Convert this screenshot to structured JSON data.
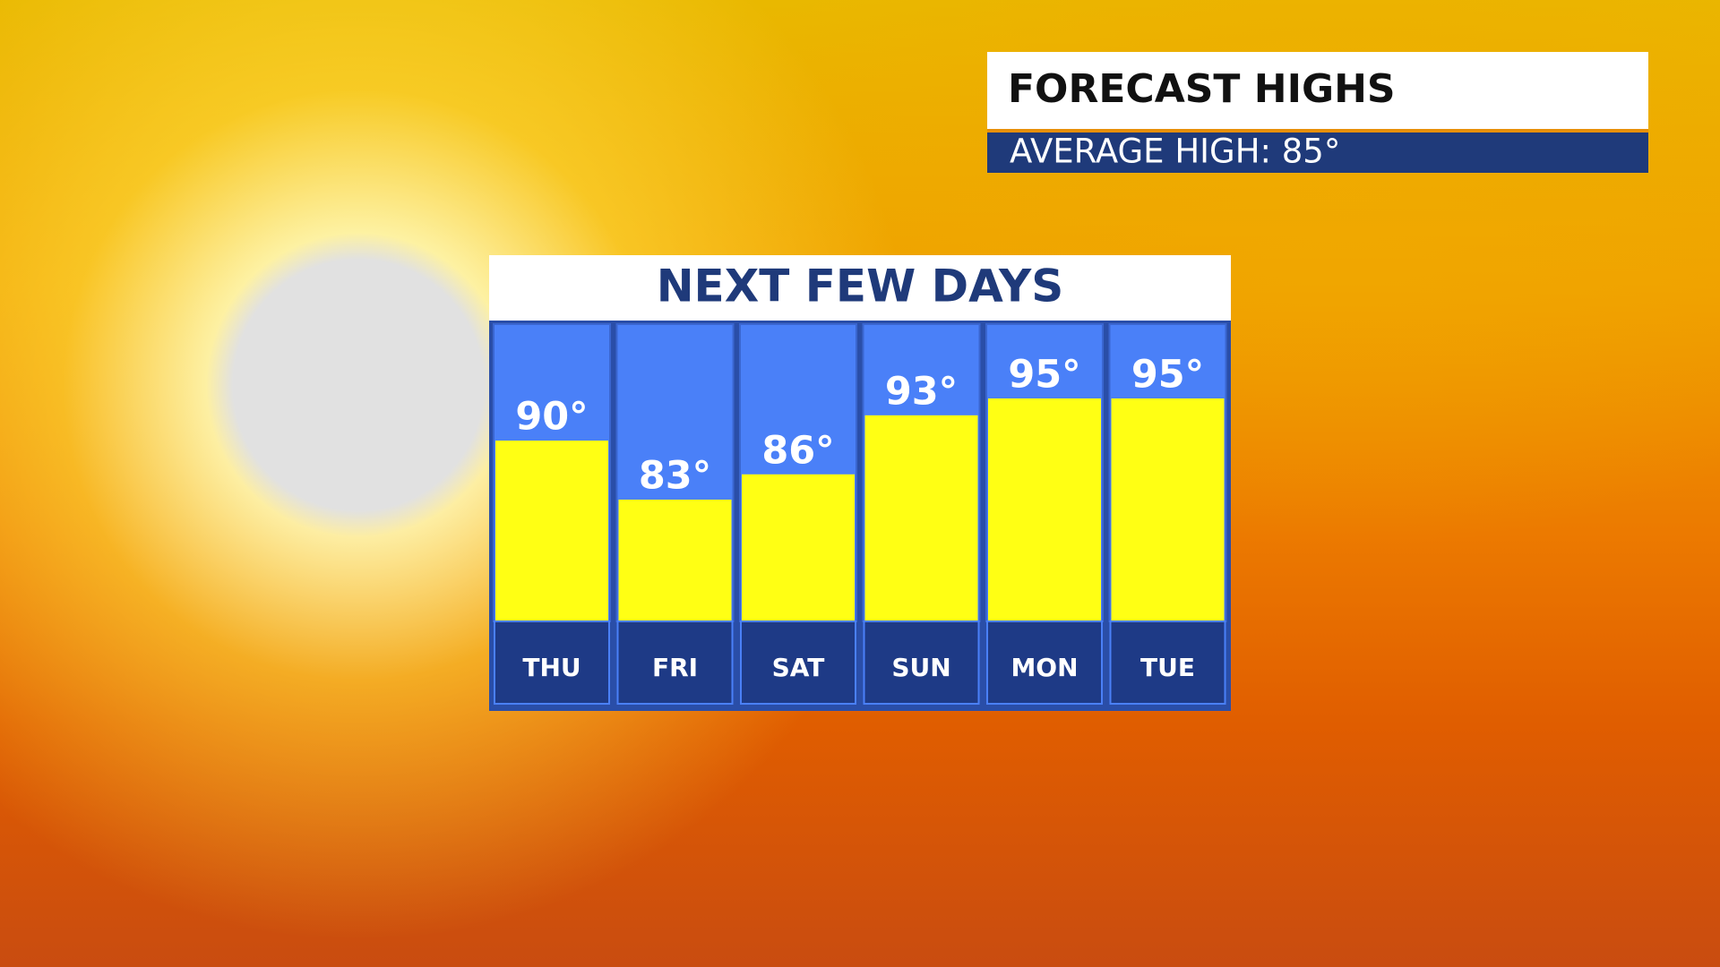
{
  "header": {
    "title": "FORECAST HIGHS",
    "subtitle": "AVERAGE HIGH:  85°"
  },
  "chart_data": {
    "type": "bar",
    "title": "NEXT FEW DAYS",
    "categories": [
      "THU",
      "FRI",
      "SAT",
      "SUN",
      "MON",
      "TUE"
    ],
    "values": [
      90,
      83,
      86,
      93,
      95,
      95
    ],
    "value_labels": [
      "90°",
      "83°",
      "86°",
      "93°",
      "95°",
      "95°"
    ],
    "color": "#ffff14"
  }
}
